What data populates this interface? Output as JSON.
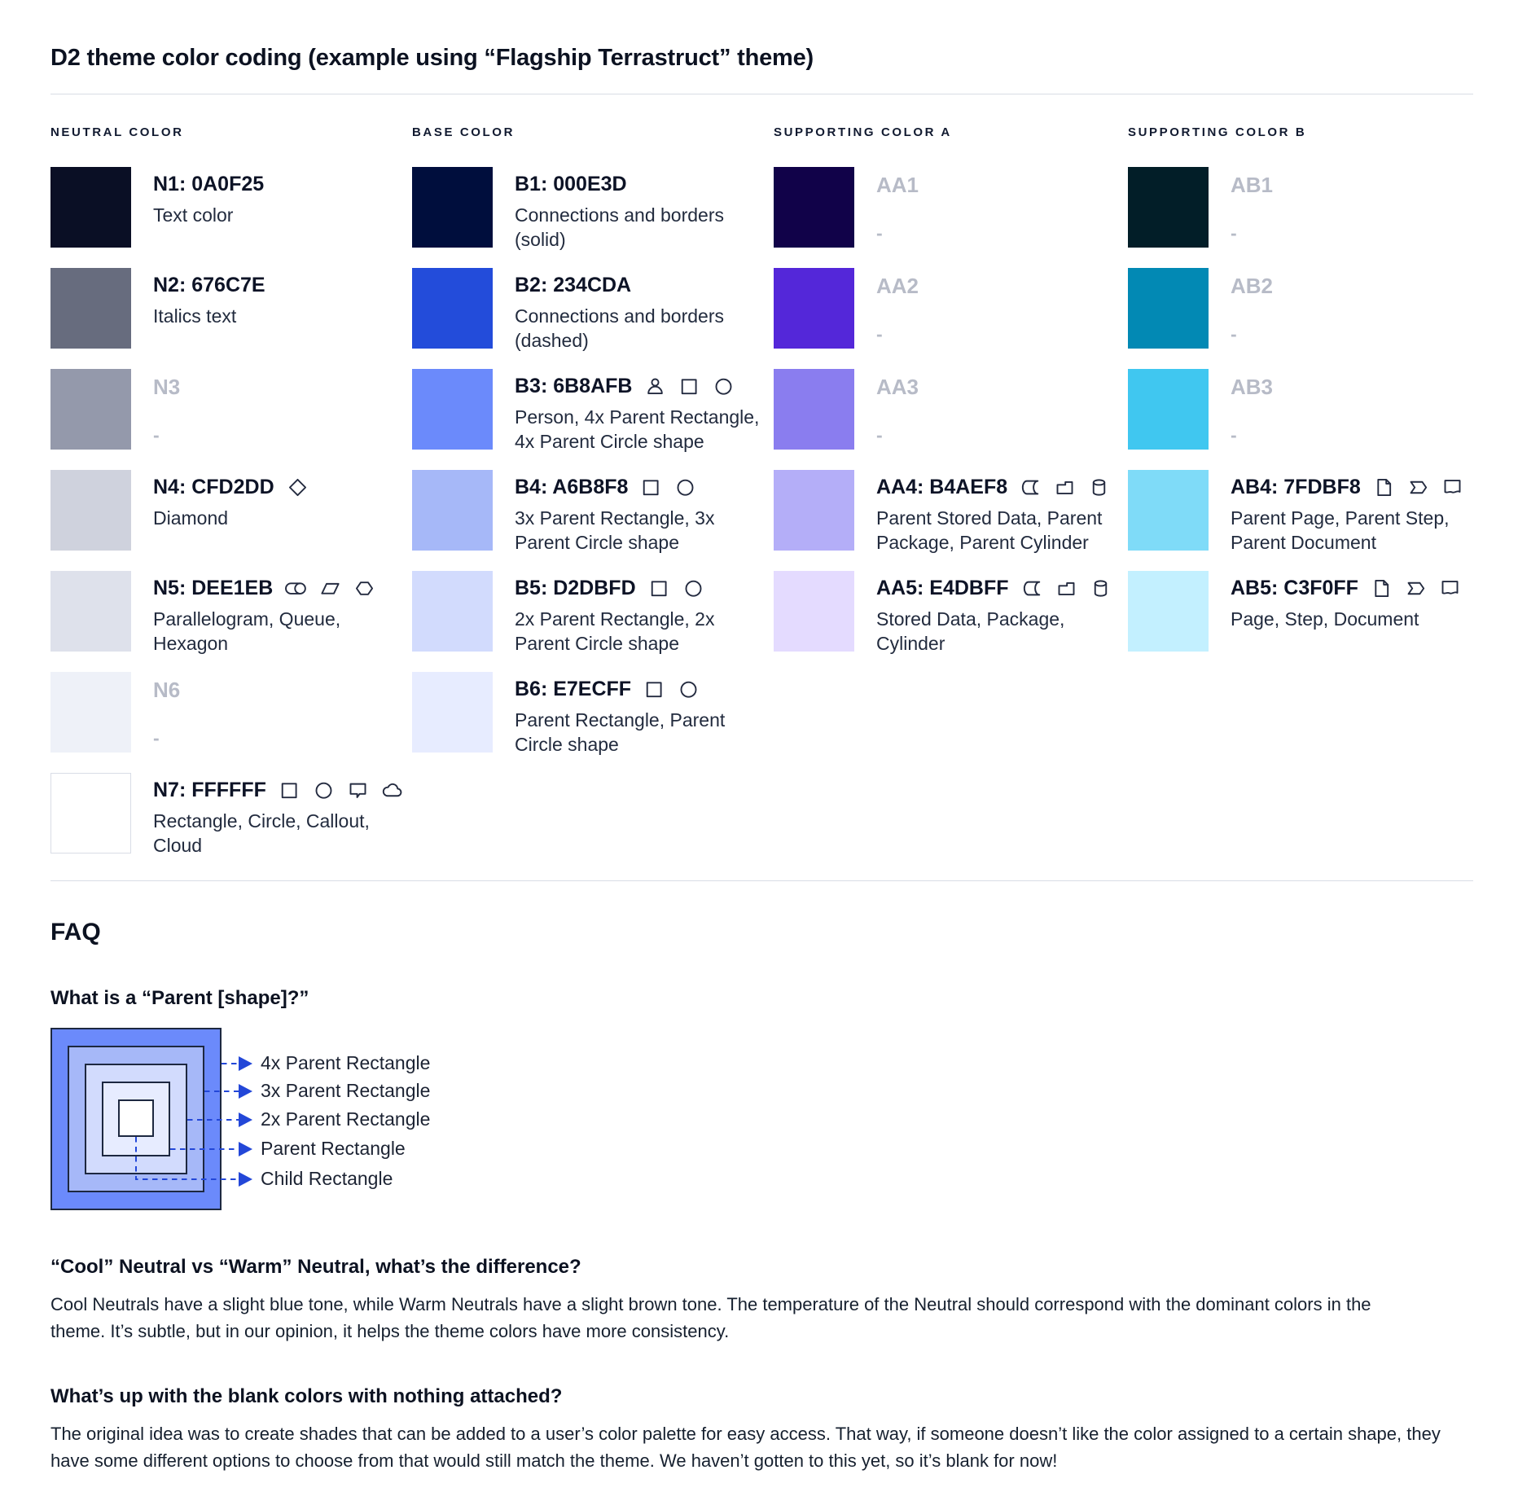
{
  "title": "D2 theme color coding (example using “Flagship Terrastruct” theme)",
  "palette": {
    "columns": [
      {
        "header": "NEUTRAL COLOR",
        "entries": [
          {
            "label": "N1: 0A0F25",
            "color": "#0A0F25",
            "description": "Text color",
            "icons": [],
            "assigned": true
          },
          {
            "label": "N2: 676C7E",
            "color": "#676C7E",
            "description": "Italics text",
            "icons": [],
            "assigned": true
          },
          {
            "label": "N3",
            "color": "#9499AB",
            "description": "-",
            "icons": [],
            "assigned": false
          },
          {
            "label": "N4: CFD2DD",
            "color": "#CFD2DD",
            "description": "Diamond",
            "icons": [
              "diamond"
            ],
            "assigned": true
          },
          {
            "label": "N5: DEE1EB",
            "color": "#DEE1EB",
            "description": "Parallelogram, Queue,\nHexagon",
            "icons": [
              "queue",
              "parallelogram",
              "hexagon"
            ],
            "assigned": true
          },
          {
            "label": "N6",
            "color": "#EEF1F8",
            "description": "-",
            "icons": [],
            "assigned": false
          },
          {
            "label": "N7: FFFFFF",
            "color": "#FFFFFF",
            "description": "Rectangle, Circle, Callout,\nCloud",
            "icons": [
              "rectangle",
              "circle",
              "callout",
              "cloud"
            ],
            "assigned": true,
            "bordered": true
          }
        ]
      },
      {
        "header": "BASE COLOR",
        "entries": [
          {
            "label": "B1: 000E3D",
            "color": "#000E3D",
            "description": "Connections and borders\n(solid)",
            "icons": [],
            "assigned": true
          },
          {
            "label": "B2: 234CDA",
            "color": "#234CDA",
            "description": "Connections and borders\n(dashed)",
            "icons": [],
            "assigned": true
          },
          {
            "label": "B3: 6B8AFB",
            "color": "#6B8AFB",
            "description": "Person, 4x Parent Rectangle,\n4x Parent Circle shape",
            "icons": [
              "person",
              "rectangle",
              "circle"
            ],
            "assigned": true
          },
          {
            "label": "B4: A6B8F8",
            "color": "#A6B8F8",
            "description": "3x Parent Rectangle, 3x\nParent Circle shape",
            "icons": [
              "rectangle",
              "circle"
            ],
            "assigned": true
          },
          {
            "label": "B5: D2DBFD",
            "color": "#D2DBFD",
            "description": "2x Parent Rectangle, 2x\nParent Circle shape",
            "icons": [
              "rectangle",
              "circle"
            ],
            "assigned": true
          },
          {
            "label": "B6: E7ECFF",
            "color": "#E7ECFF",
            "description": "Parent Rectangle, Parent\nCircle shape",
            "icons": [
              "rectangle",
              "circle"
            ],
            "assigned": true
          }
        ]
      },
      {
        "header": "SUPPORTING COLOR A",
        "entries": [
          {
            "label": "AA1",
            "color": "#110249",
            "description": "-",
            "icons": [],
            "assigned": false
          },
          {
            "label": "AA2",
            "color": "#5427D9",
            "description": "-",
            "icons": [],
            "assigned": false
          },
          {
            "label": "AA3",
            "color": "#8A7DEF",
            "description": "-",
            "icons": [],
            "assigned": false
          },
          {
            "label": "AA4: B4AEF8",
            "color": "#B4AEF8",
            "description": "Parent Stored Data, Parent\nPackage,  Parent Cylinder",
            "icons": [
              "stored-data",
              "package",
              "cylinder"
            ],
            "assigned": true
          },
          {
            "label": "AA5: E4DBFF",
            "color": "#E4DBFF",
            "description": "Stored Data, Package,\nCylinder",
            "icons": [
              "stored-data",
              "package",
              "cylinder"
            ],
            "assigned": true
          }
        ]
      },
      {
        "header": "SUPPORTING COLOR B",
        "entries": [
          {
            "label": "AB1",
            "color": "#021E28",
            "description": "-",
            "icons": [],
            "assigned": false
          },
          {
            "label": "AB2",
            "color": "#0289B4",
            "description": "-",
            "icons": [],
            "assigned": false
          },
          {
            "label": "AB3",
            "color": "#40C7F0",
            "description": "-",
            "icons": [],
            "assigned": false
          },
          {
            "label": "AB4: 7FDBF8",
            "color": "#7FDBF8",
            "description": "Parent Page, Parent Step,\nParent Document",
            "icons": [
              "page",
              "step",
              "document"
            ],
            "assigned": true
          },
          {
            "label": "AB5: C3F0FF",
            "color": "#C3F0FF",
            "description": "Page, Step, Document",
            "icons": [
              "page",
              "step",
              "document"
            ],
            "assigned": true
          }
        ]
      }
    ]
  },
  "faq": {
    "heading": "FAQ",
    "q1": {
      "question": "What is a “Parent [shape]?”",
      "diagram": {
        "connector_color": "#2347D8",
        "border_color": "#1d2840",
        "levels": [
          {
            "label": "4x Parent Rectangle",
            "color": "#6B8AFB"
          },
          {
            "label": "3x Parent Rectangle",
            "color": "#A6B8F8"
          },
          {
            "label": "2x Parent Rectangle",
            "color": "#D2DBFD"
          },
          {
            "label": "Parent Rectangle",
            "color": "#E7ECFF"
          },
          {
            "label": "Child Rectangle",
            "color": "#FFFFFF"
          }
        ]
      }
    },
    "q2": {
      "question": "“Cool” Neutral vs “Warm” Neutral, what’s the difference?",
      "answer": "Cool Neutrals have a slight blue tone, while Warm Neutrals have a slight brown tone. The temperature of the Neutral should correspond with the dominant colors in the\ntheme. It’s subtle, but in our opinion, it helps the theme colors have more consistency."
    },
    "q3": {
      "question": "What’s up with the blank colors with nothing attached?",
      "answer": "The original idea was to create shades that can be added to a user’s color palette for easy access. That way, if someone doesn’t like the color assigned to a certain shape, they\nhave some different options to choose from that would still match the theme. We haven’t gotten to this yet, so it’s blank for now!"
    }
  }
}
